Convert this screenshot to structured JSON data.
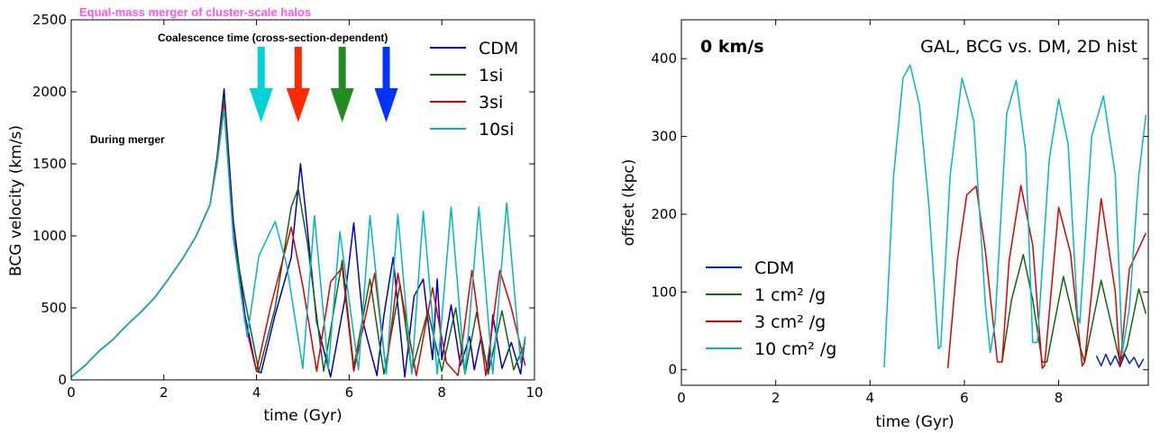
{
  "chart_data": [
    {
      "type": "line",
      "title": "Equal-mass merger of cluster-scale halos",
      "title_color": "#ff55ee",
      "xlabel": "time (Gyr)",
      "ylabel": "BCG velocity (km/s)",
      "xlim": [
        0,
        10
      ],
      "ylim": [
        0,
        2500
      ],
      "xticks": [
        "0",
        "2",
        "4",
        "6",
        "8",
        "10"
      ],
      "yticks": [
        "0",
        "500",
        "1000",
        "1500",
        "2000",
        "2500"
      ],
      "legend_position": "top-right",
      "annotations": {
        "coalescence": "Coalescence time (cross-section-dependent)",
        "during": "During merger"
      },
      "arrows": [
        {
          "x": 4.1,
          "color": "#00d2d6"
        },
        {
          "x": 4.9,
          "color": "#ff2a00"
        },
        {
          "x": 5.85,
          "color": "#228b22"
        },
        {
          "x": 6.8,
          "color": "#0033ff"
        }
      ],
      "series": [
        {
          "name": "CDM",
          "color": "#0000cc",
          "x": [
            0,
            0.3,
            0.6,
            0.9,
            1.2,
            1.5,
            1.8,
            2.1,
            2.4,
            2.7,
            3.0,
            3.15,
            3.3,
            3.5,
            3.75,
            4.0,
            4.1,
            4.4,
            4.75,
            4.95,
            5.05,
            5.3,
            5.6,
            5.9,
            6.1,
            6.3,
            6.6,
            6.75,
            6.95,
            7.2,
            7.4,
            7.6,
            7.8,
            7.9,
            8.0,
            8.2,
            8.4,
            8.6,
            8.7,
            8.85,
            9.0,
            9.1,
            9.3,
            9.5,
            9.7,
            9.8
          ],
          "y": [
            20,
            100,
            200,
            280,
            380,
            470,
            570,
            700,
            840,
            1000,
            1220,
            1550,
            2020,
            1100,
            450,
            60,
            50,
            450,
            850,
            1500,
            1200,
            400,
            20,
            550,
            1090,
            400,
            30,
            450,
            850,
            20,
            580,
            700,
            140,
            700,
            140,
            520,
            100,
            300,
            70,
            300,
            40,
            450,
            80,
            260,
            40,
            300
          ]
        },
        {
          "name": "1si",
          "color": "#116611",
          "x": [
            0,
            0.3,
            0.6,
            0.9,
            1.2,
            1.5,
            1.8,
            2.1,
            2.4,
            2.7,
            3.0,
            3.15,
            3.3,
            3.5,
            3.75,
            4.05,
            4.4,
            4.75,
            4.9,
            5.1,
            5.45,
            5.85,
            6.1,
            6.45,
            6.75,
            7.1,
            7.35,
            7.7,
            8.0,
            8.3,
            8.5,
            8.75,
            9.0,
            9.3,
            9.55,
            9.8
          ],
          "y": [
            20,
            100,
            200,
            280,
            380,
            470,
            570,
            700,
            840,
            1000,
            1220,
            1540,
            1960,
            1000,
            550,
            60,
            500,
            1200,
            1330,
            950,
            60,
            830,
            90,
            700,
            40,
            660,
            60,
            480,
            60,
            500,
            40,
            470,
            40,
            480,
            70,
            260
          ]
        },
        {
          "name": "3si",
          "color": "#dd0000",
          "x": [
            0,
            0.3,
            0.6,
            0.9,
            1.2,
            1.5,
            1.8,
            2.1,
            2.4,
            2.7,
            3.0,
            3.15,
            3.3,
            3.5,
            3.75,
            4.0,
            4.3,
            4.75,
            5.0,
            5.3,
            5.6,
            5.85,
            6.1,
            6.55,
            6.8,
            7.05,
            7.45,
            7.8,
            8.1,
            8.35,
            8.65,
            8.95,
            9.25,
            9.5,
            9.8
          ],
          "y": [
            20,
            100,
            200,
            280,
            380,
            470,
            570,
            700,
            840,
            1000,
            1220,
            1520,
            1920,
            1000,
            400,
            60,
            500,
            1060,
            650,
            60,
            680,
            780,
            60,
            740,
            60,
            740,
            30,
            640,
            120,
            30,
            760,
            30,
            760,
            500,
            100
          ]
        },
        {
          "name": "10si",
          "color": "#00b8b8",
          "x": [
            0,
            0.3,
            0.6,
            0.9,
            1.2,
            1.5,
            1.8,
            2.1,
            2.4,
            2.7,
            3.0,
            3.15,
            3.3,
            3.5,
            3.8,
            4.05,
            4.4,
            4.65,
            5.0,
            5.25,
            5.55,
            5.8,
            6.2,
            6.45,
            6.8,
            7.05,
            7.35,
            7.6,
            7.9,
            8.2,
            8.5,
            8.8,
            9.1,
            9.4,
            9.7,
            9.8
          ],
          "y": [
            20,
            100,
            200,
            280,
            380,
            470,
            570,
            700,
            840,
            1000,
            1220,
            1500,
            1880,
            980,
            300,
            860,
            1100,
            800,
            80,
            1140,
            80,
            1030,
            70,
            1140,
            40,
            1150,
            40,
            1170,
            40,
            1200,
            40,
            1200,
            40,
            1230,
            120,
            300
          ]
        }
      ]
    },
    {
      "type": "line",
      "title": "GAL, BCG vs. DM, 2D hist",
      "corner_label": "0 km/s",
      "xlabel": "time (Gyr)",
      "ylabel": "offset (kpc)",
      "xlim": [
        0,
        9.9
      ],
      "ylim": [
        -20,
        450
      ],
      "xticks": [
        "0",
        "2",
        "4",
        "6",
        "8"
      ],
      "yticks": [
        "0",
        "100",
        "200",
        "300",
        "400"
      ],
      "legend_position": "bottom-left",
      "series": [
        {
          "name": "CDM",
          "color": "#0022cc",
          "x": [
            8.8,
            8.9,
            9.0,
            9.1,
            9.2,
            9.3,
            9.4,
            9.5,
            9.6,
            9.7,
            9.8
          ],
          "y": [
            18,
            5,
            20,
            6,
            18,
            4,
            20,
            8,
            16,
            3,
            14
          ]
        },
        {
          "name": "1 cm² /g",
          "color": "#116611",
          "x": [
            6.8,
            7.0,
            7.25,
            7.45,
            7.65,
            7.75,
            8.1,
            8.45,
            8.55,
            8.9,
            9.3,
            9.45,
            9.7,
            9.85
          ],
          "y": [
            10,
            90,
            148,
            90,
            10,
            10,
            120,
            30,
            10,
            115,
            10,
            30,
            104,
            72
          ]
        },
        {
          "name": "3 cm² /g",
          "color": "#dd0000",
          "x": [
            5.65,
            5.85,
            6.05,
            6.25,
            6.45,
            6.7,
            6.8,
            6.95,
            7.2,
            7.45,
            7.65,
            7.7,
            8.0,
            8.25,
            8.5,
            8.55,
            8.9,
            9.2,
            9.3,
            9.5,
            9.85
          ],
          "y": [
            2,
            140,
            225,
            236,
            150,
            10,
            10,
            140,
            237,
            160,
            2,
            5,
            209,
            150,
            5,
            10,
            220,
            100,
            5,
            130,
            176
          ]
        },
        {
          "name": "10 cm² /g",
          "color": "#00bbbb",
          "x": [
            4.3,
            4.5,
            4.7,
            4.85,
            5.05,
            5.25,
            5.45,
            5.5,
            5.7,
            5.95,
            6.2,
            6.45,
            6.55,
            6.65,
            6.9,
            7.1,
            7.3,
            7.45,
            7.55,
            7.8,
            8.0,
            8.2,
            8.4,
            8.45,
            8.7,
            8.95,
            9.2,
            9.35,
            9.5,
            9.7,
            9.85
          ],
          "y": [
            3,
            250,
            375,
            392,
            340,
            210,
            27,
            30,
            250,
            375,
            320,
            80,
            22,
            60,
            330,
            372,
            280,
            35,
            35,
            270,
            348,
            290,
            70,
            60,
            300,
            352,
            250,
            22,
            80,
            250,
            328
          ]
        }
      ]
    }
  ]
}
